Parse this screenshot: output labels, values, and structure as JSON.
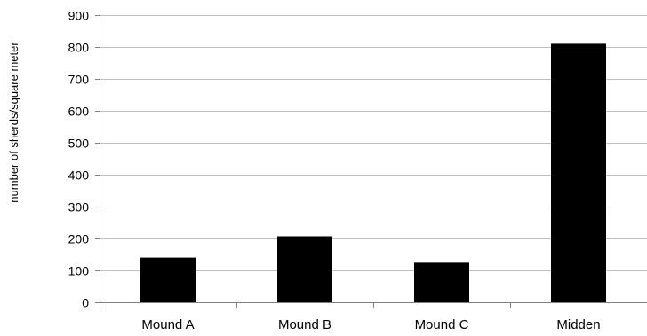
{
  "chart_data": {
    "type": "bar",
    "title": "",
    "xlabel": "",
    "ylabel": "number of sherds/square meter",
    "categories": [
      "Mound A",
      "Mound B",
      "Mound C",
      "Midden"
    ],
    "values": [
      140,
      207,
      124,
      810
    ],
    "ylim": [
      0,
      900
    ],
    "yticks": [
      0,
      100,
      200,
      300,
      400,
      500,
      600,
      700,
      800,
      900
    ],
    "grid": true,
    "legend": "none",
    "colors": {
      "bar": "#000000",
      "grid": "#bfbfbf",
      "axis": "#808080"
    }
  }
}
